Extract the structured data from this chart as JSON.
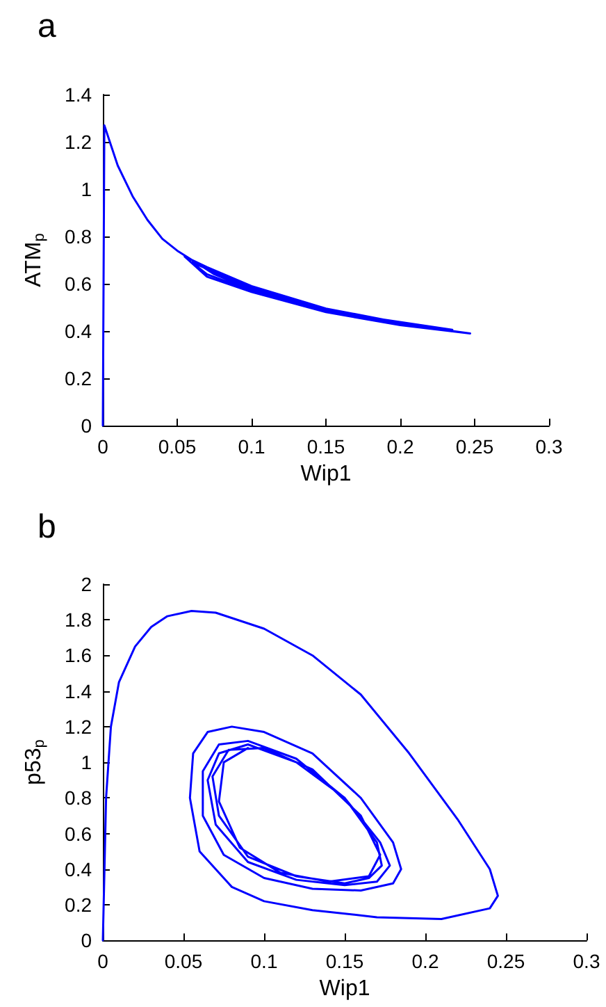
{
  "chart_data": [
    {
      "type": "line",
      "title": "a",
      "xlabel": "Wip1",
      "ylabel": "ATM$_{p}$",
      "xlim": [
        0,
        0.3
      ],
      "ylim": [
        0,
        1.4
      ],
      "xticks": [
        0,
        0.05,
        0.1,
        0.15,
        0.2,
        0.25,
        0.3
      ],
      "yticks": [
        0,
        0.2,
        0.4,
        0.6,
        0.8,
        1,
        1.2,
        1.4
      ],
      "grid": false,
      "marker": "none",
      "line_style": "solid",
      "series": [
        {
          "color": "#0000ff",
          "x": [
            0,
            0.001,
            0.01,
            0.02,
            0.03,
            0.04,
            0.05,
            0.07,
            0.1,
            0.15,
            0.2,
            0.247,
            0.2,
            0.15,
            0.1,
            0.07,
            0.055,
            0.07,
            0.1,
            0.15,
            0.2,
            0.235,
            0.15,
            0.1,
            0.07,
            0.06,
            0.075,
            0.1,
            0.15,
            0.2,
            0.22,
            0.15,
            0.1,
            0.075,
            0.065,
            0.08,
            0.1,
            0.15,
            0.21
          ],
          "values": [
            0,
            1.27,
            1.1,
            0.97,
            0.87,
            0.79,
            0.74,
            0.66,
            0.59,
            0.49,
            0.43,
            0.39,
            0.425,
            0.48,
            0.565,
            0.63,
            0.715,
            0.67,
            0.59,
            0.495,
            0.435,
            0.405,
            0.485,
            0.57,
            0.64,
            0.69,
            0.65,
            0.585,
            0.49,
            0.43,
            0.415,
            0.49,
            0.575,
            0.64,
            0.68,
            0.63,
            0.58,
            0.49,
            0.425
          ]
        }
      ]
    },
    {
      "type": "line",
      "title": "b",
      "xlabel": "Wip1",
      "ylabel": "p53$_{p}$",
      "xlim": [
        0,
        0.3
      ],
      "ylim": [
        0,
        2
      ],
      "xticks": [
        0,
        0.05,
        0.1,
        0.15,
        0.2,
        0.25,
        0.3
      ],
      "yticks": [
        0,
        0.2,
        0.4,
        0.6,
        0.8,
        1,
        1.2,
        1.4,
        1.6,
        1.8,
        2
      ],
      "grid": false,
      "marker": "none",
      "line_style": "solid",
      "series": [
        {
          "color": "#0000ff",
          "x": [
            0,
            0.002,
            0.005,
            0.01,
            0.02,
            0.03,
            0.04,
            0.055,
            0.07,
            0.1,
            0.13,
            0.16,
            0.19,
            0.22,
            0.24,
            0.245,
            0.24,
            0.21,
            0.17,
            0.13,
            0.1,
            0.08,
            0.06,
            0.054,
            0.056,
            0.065,
            0.08,
            0.1,
            0.13,
            0.16,
            0.18,
            0.185,
            0.18,
            0.16,
            0.13,
            0.1,
            0.075,
            0.062,
            0.062,
            0.072,
            0.09,
            0.12,
            0.15,
            0.172,
            0.178,
            0.17,
            0.15,
            0.12,
            0.09,
            0.07,
            0.065,
            0.072,
            0.09,
            0.12,
            0.15,
            0.17,
            0.173,
            0.165,
            0.15,
            0.12,
            0.09,
            0.072,
            0.068,
            0.078,
            0.1,
            0.13,
            0.16,
            0.172,
            0.165,
            0.14,
            0.11,
            0.085,
            0.072,
            0.075,
            0.09
          ],
          "values": [
            0,
            0.8,
            1.2,
            1.45,
            1.65,
            1.76,
            1.82,
            1.85,
            1.84,
            1.75,
            1.6,
            1.38,
            1.05,
            0.68,
            0.4,
            0.25,
            0.18,
            0.12,
            0.13,
            0.17,
            0.22,
            0.3,
            0.5,
            0.8,
            1.05,
            1.17,
            1.2,
            1.17,
            1.05,
            0.8,
            0.55,
            0.4,
            0.32,
            0.28,
            0.29,
            0.35,
            0.48,
            0.7,
            0.95,
            1.1,
            1.12,
            1.02,
            0.8,
            0.55,
            0.42,
            0.33,
            0.31,
            0.34,
            0.44,
            0.65,
            0.9,
            1.05,
            1.1,
            1.0,
            0.8,
            0.55,
            0.42,
            0.35,
            0.32,
            0.36,
            0.47,
            0.7,
            0.92,
            1.07,
            1.08,
            0.96,
            0.7,
            0.48,
            0.36,
            0.33,
            0.38,
            0.52,
            0.78,
            1.0,
            1.08
          ]
        }
      ]
    }
  ]
}
